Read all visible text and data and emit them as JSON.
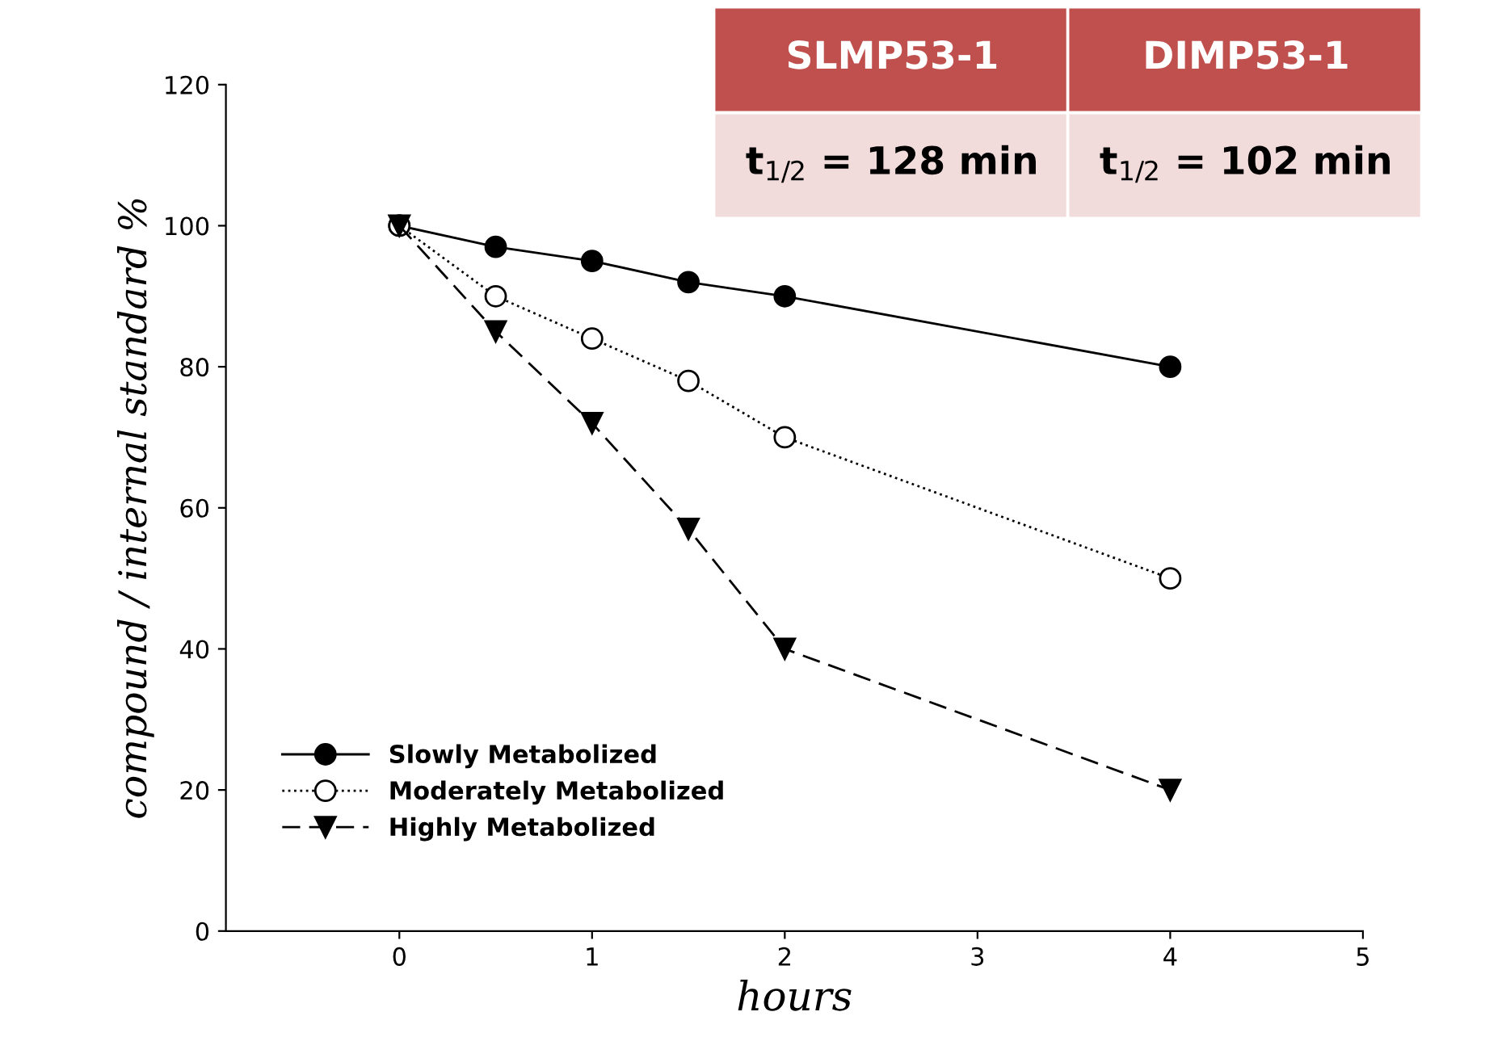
{
  "chart_data": {
    "type": "line",
    "xlabel": "hours",
    "ylabel": "compound / internal standard %",
    "x": [
      0,
      0.5,
      1,
      1.5,
      2,
      4
    ],
    "series": [
      {
        "name": "Slowly Metabolized",
        "color": "#000000",
        "marker": "circle",
        "line_style": "solid",
        "values": [
          100,
          97,
          95,
          92,
          90,
          80
        ]
      },
      {
        "name": "Moderately Metabolized",
        "color": "#000000",
        "marker": "circle",
        "line_style": "dotted",
        "values": [
          100,
          90,
          84,
          78,
          70,
          50
        ]
      },
      {
        "name": "Highly Metabolized",
        "color": "#000000",
        "marker": "triangle",
        "line_style": "dashed",
        "values": [
          100,
          85,
          72,
          57,
          40,
          20
        ]
      }
    ],
    "xlim": [
      -0.9,
      5
    ],
    "xticks": [
      0,
      1,
      2,
      3,
      4,
      5
    ],
    "ylim": [
      0,
      120
    ],
    "yticks": [
      0,
      20,
      40,
      60,
      80,
      100,
      120
    ],
    "grid": false,
    "legend": "bottom left",
    "annotations": [
      "SLMP53-1",
      "DIMP53-1",
      "t$_{1/2}$ = 128 min",
      "t$_{1/2}$ = 102 min"
    ]
  }
}
